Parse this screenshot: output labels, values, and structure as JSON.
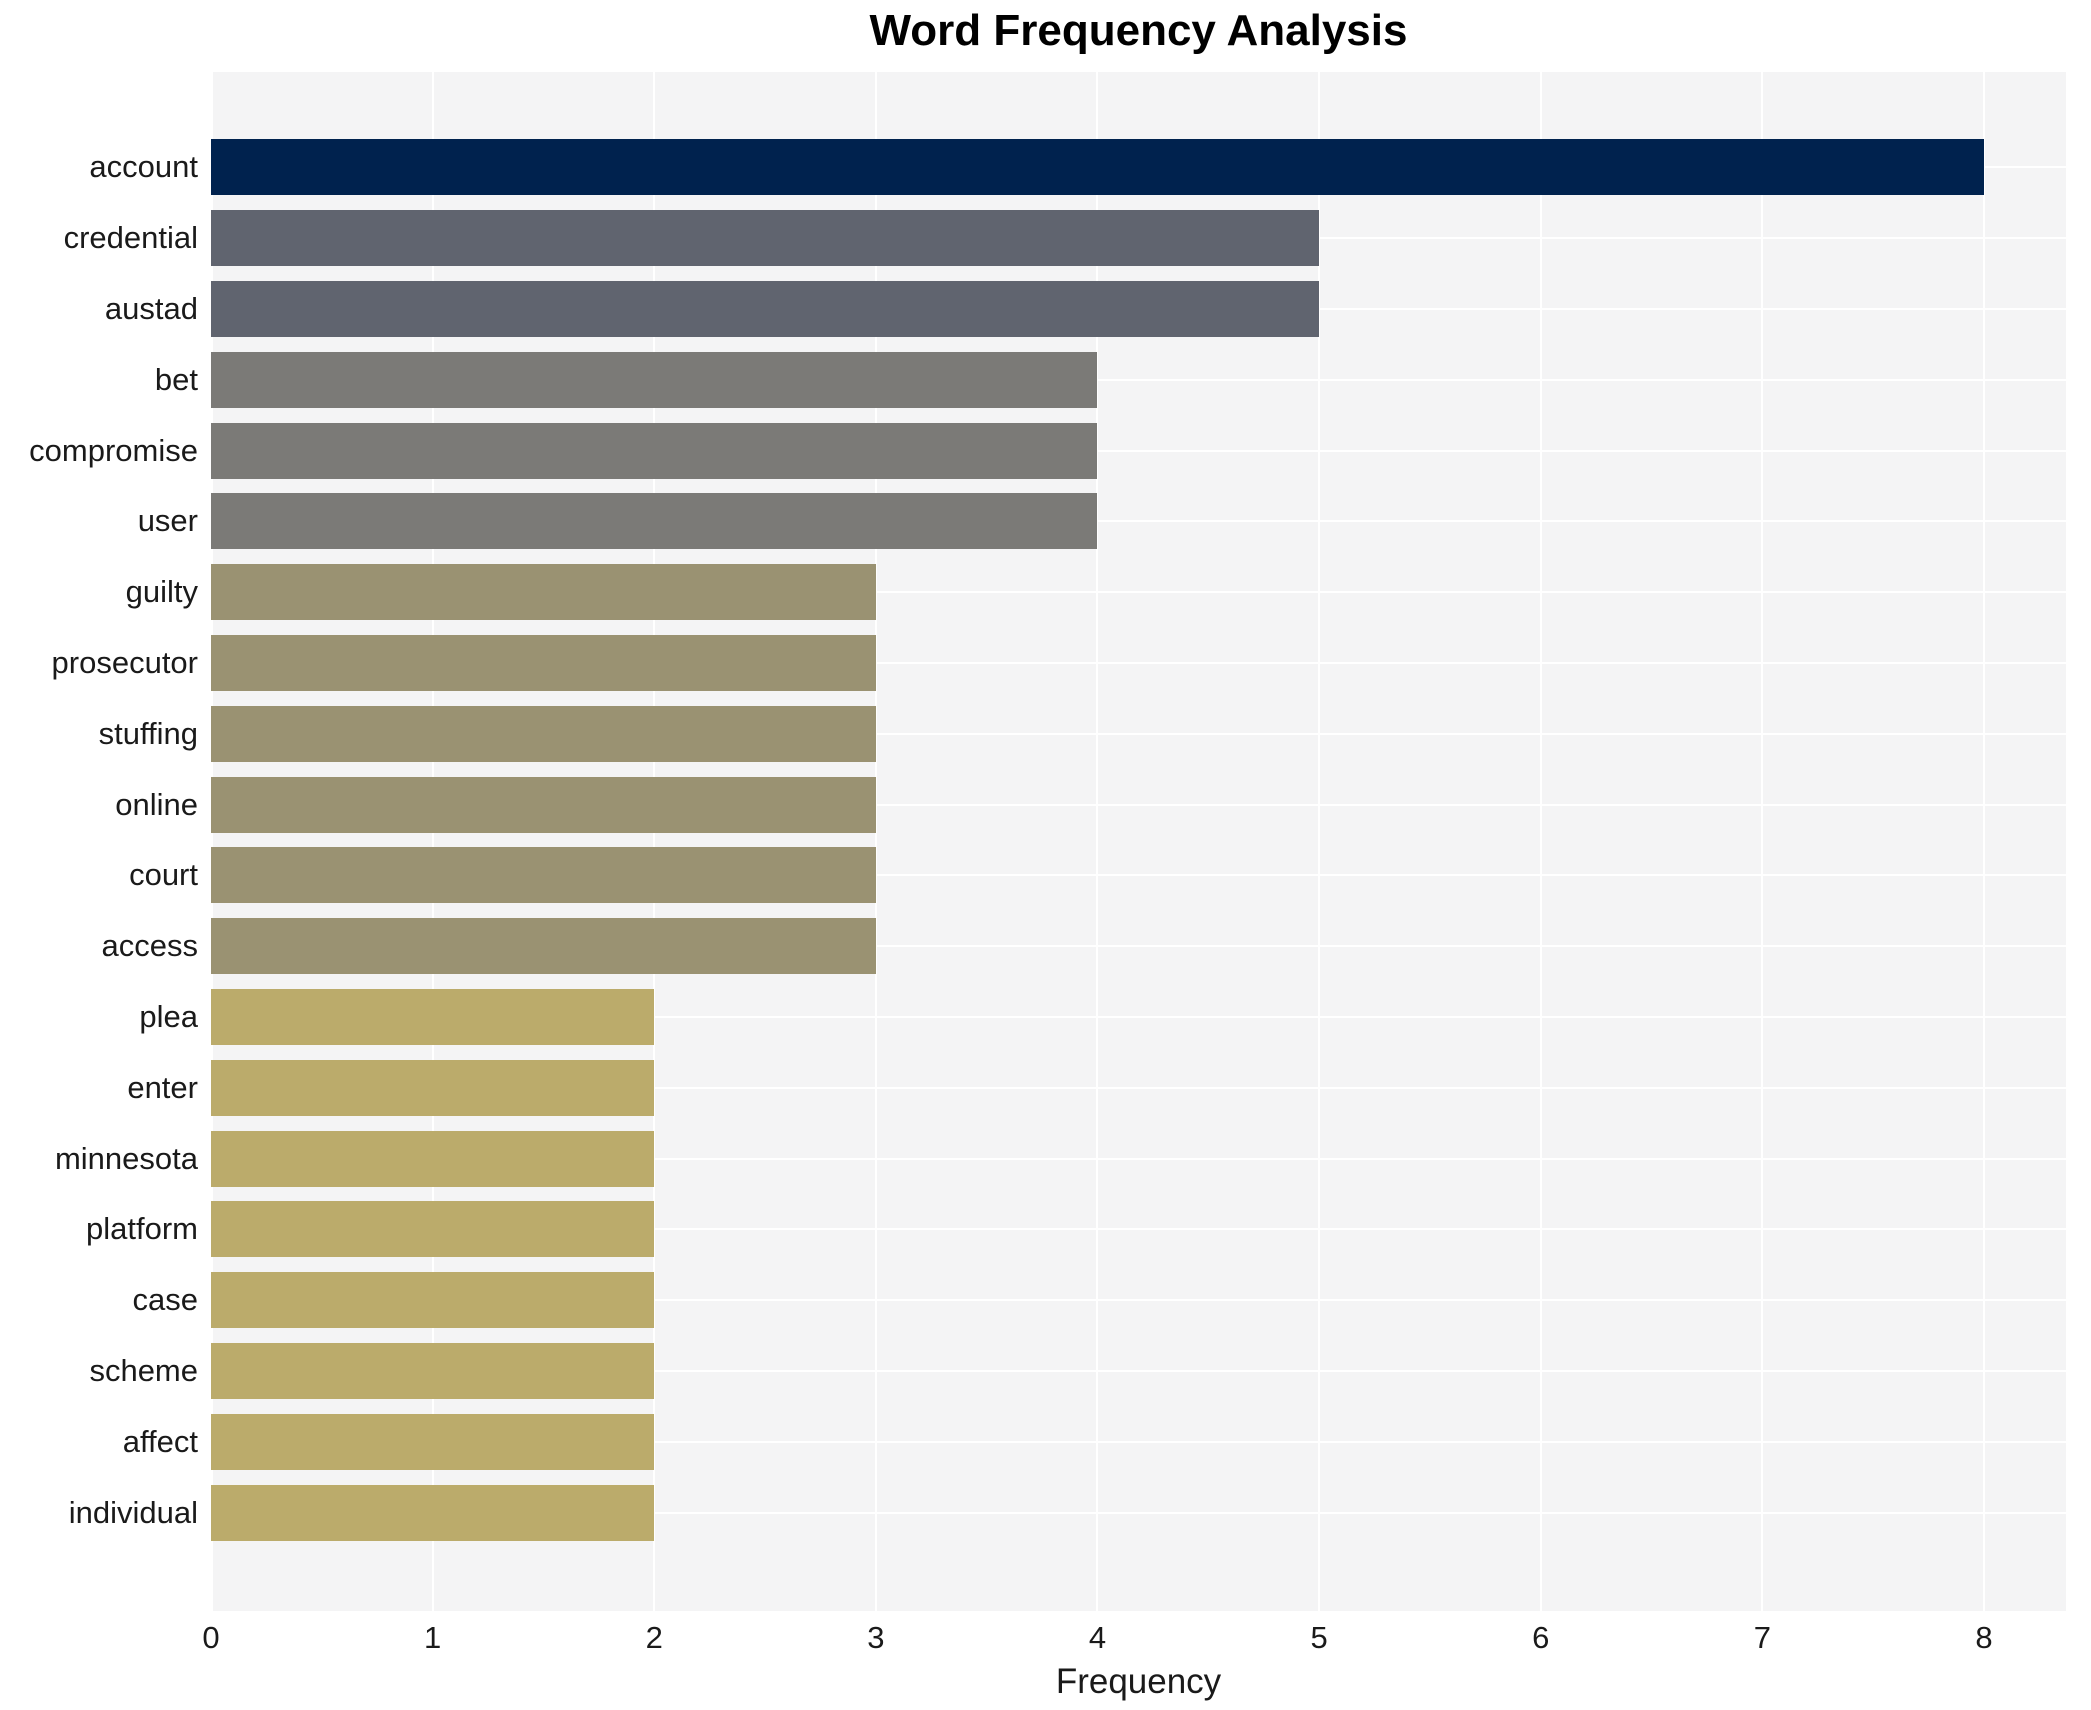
{
  "chart_data": {
    "type": "bar",
    "orientation": "horizontal",
    "title": "Word Frequency Analysis",
    "xlabel": "Frequency",
    "ylabel": "",
    "categories": [
      "account",
      "credential",
      "austad",
      "bet",
      "compromise",
      "user",
      "guilty",
      "prosecutor",
      "stuffing",
      "online",
      "court",
      "access",
      "plea",
      "enter",
      "minnesota",
      "platform",
      "case",
      "scheme",
      "affect",
      "individual"
    ],
    "values": [
      8,
      5,
      5,
      4,
      4,
      4,
      3,
      3,
      3,
      3,
      3,
      3,
      2,
      2,
      2,
      2,
      2,
      2,
      2,
      2
    ],
    "bar_colors": [
      "#00224e",
      "#60646f",
      "#60646f",
      "#7b7a77",
      "#7b7a77",
      "#7b7a77",
      "#9a9272",
      "#9a9272",
      "#9a9272",
      "#9a9272",
      "#9a9272",
      "#9a9272",
      "#bbab6b",
      "#bbab6b",
      "#bbab6b",
      "#bbab6b",
      "#bbab6b",
      "#bbab6b",
      "#bbab6b",
      "#bbab6b"
    ],
    "xticks": [
      0,
      1,
      2,
      3,
      4,
      5,
      6,
      7,
      8
    ],
    "xlim": [
      0,
      8.37
    ],
    "grid": true,
    "legend_position": "none",
    "plot_bg_color": "#f4f4f5",
    "grid_color": "#ffffff"
  }
}
